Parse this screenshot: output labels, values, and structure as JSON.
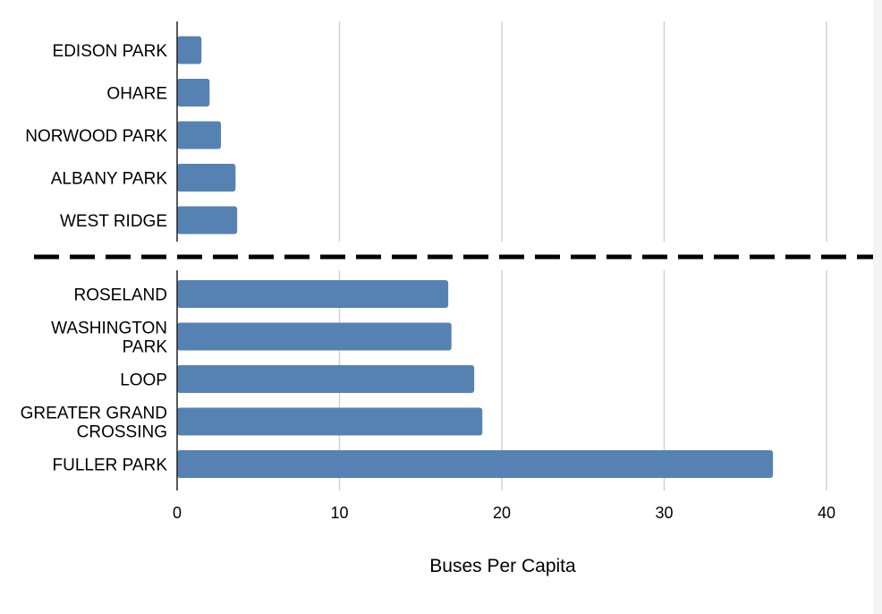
{
  "chart_data": {
    "type": "bar",
    "orientation": "horizontal",
    "xlabel": "Buses Per Capita",
    "xlim": [
      0,
      42
    ],
    "x_ticks": [
      "0",
      "10",
      "20",
      "30",
      "40"
    ],
    "grid": "vertical",
    "bar_color": "#5682b3",
    "divider": "dashed line separating lowest five and highest five",
    "groups": [
      {
        "name": "",
        "categories": [
          [
            "EDISON PARK"
          ],
          [
            "OHARE"
          ],
          [
            "NORWOOD PARK"
          ],
          [
            "ALBANY PARK"
          ],
          [
            "WEST RIDGE"
          ]
        ],
        "values": [
          1.5,
          2.0,
          2.7,
          3.6,
          3.7
        ]
      },
      {
        "name": "",
        "categories": [
          [
            "ROSELAND"
          ],
          [
            "WASHINGTON",
            "PARK"
          ],
          [
            "LOOP"
          ],
          [
            "GREATER GRAND",
            "CROSSING"
          ],
          [
            "FULLER PARK"
          ]
        ],
        "values": [
          16.7,
          16.9,
          18.3,
          18.8,
          36.7
        ]
      }
    ]
  }
}
